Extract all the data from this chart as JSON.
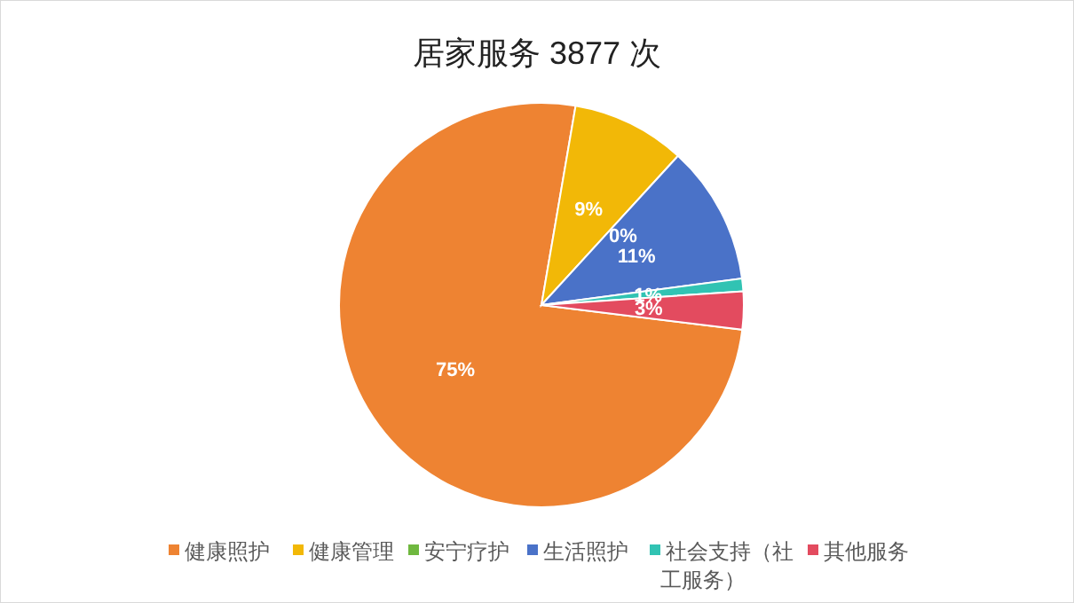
{
  "chart_data": {
    "type": "pie",
    "title": "居家服务 3877 次",
    "categories": [
      "健康照护",
      "健康管理",
      "安宁疗护",
      "生活照护",
      "社会支持（社工服务）",
      "其他服务"
    ],
    "values": [
      75,
      9,
      0,
      11,
      1,
      3
    ],
    "colors": [
      "#ee8332",
      "#f2b807",
      "#6fb83f",
      "#4a72c8",
      "#31c3b3",
      "#e34b5f"
    ],
    "value_labels": [
      "75%",
      "9%",
      "0%",
      "11%",
      "1%",
      "3%"
    ],
    "legend": "bottom"
  }
}
